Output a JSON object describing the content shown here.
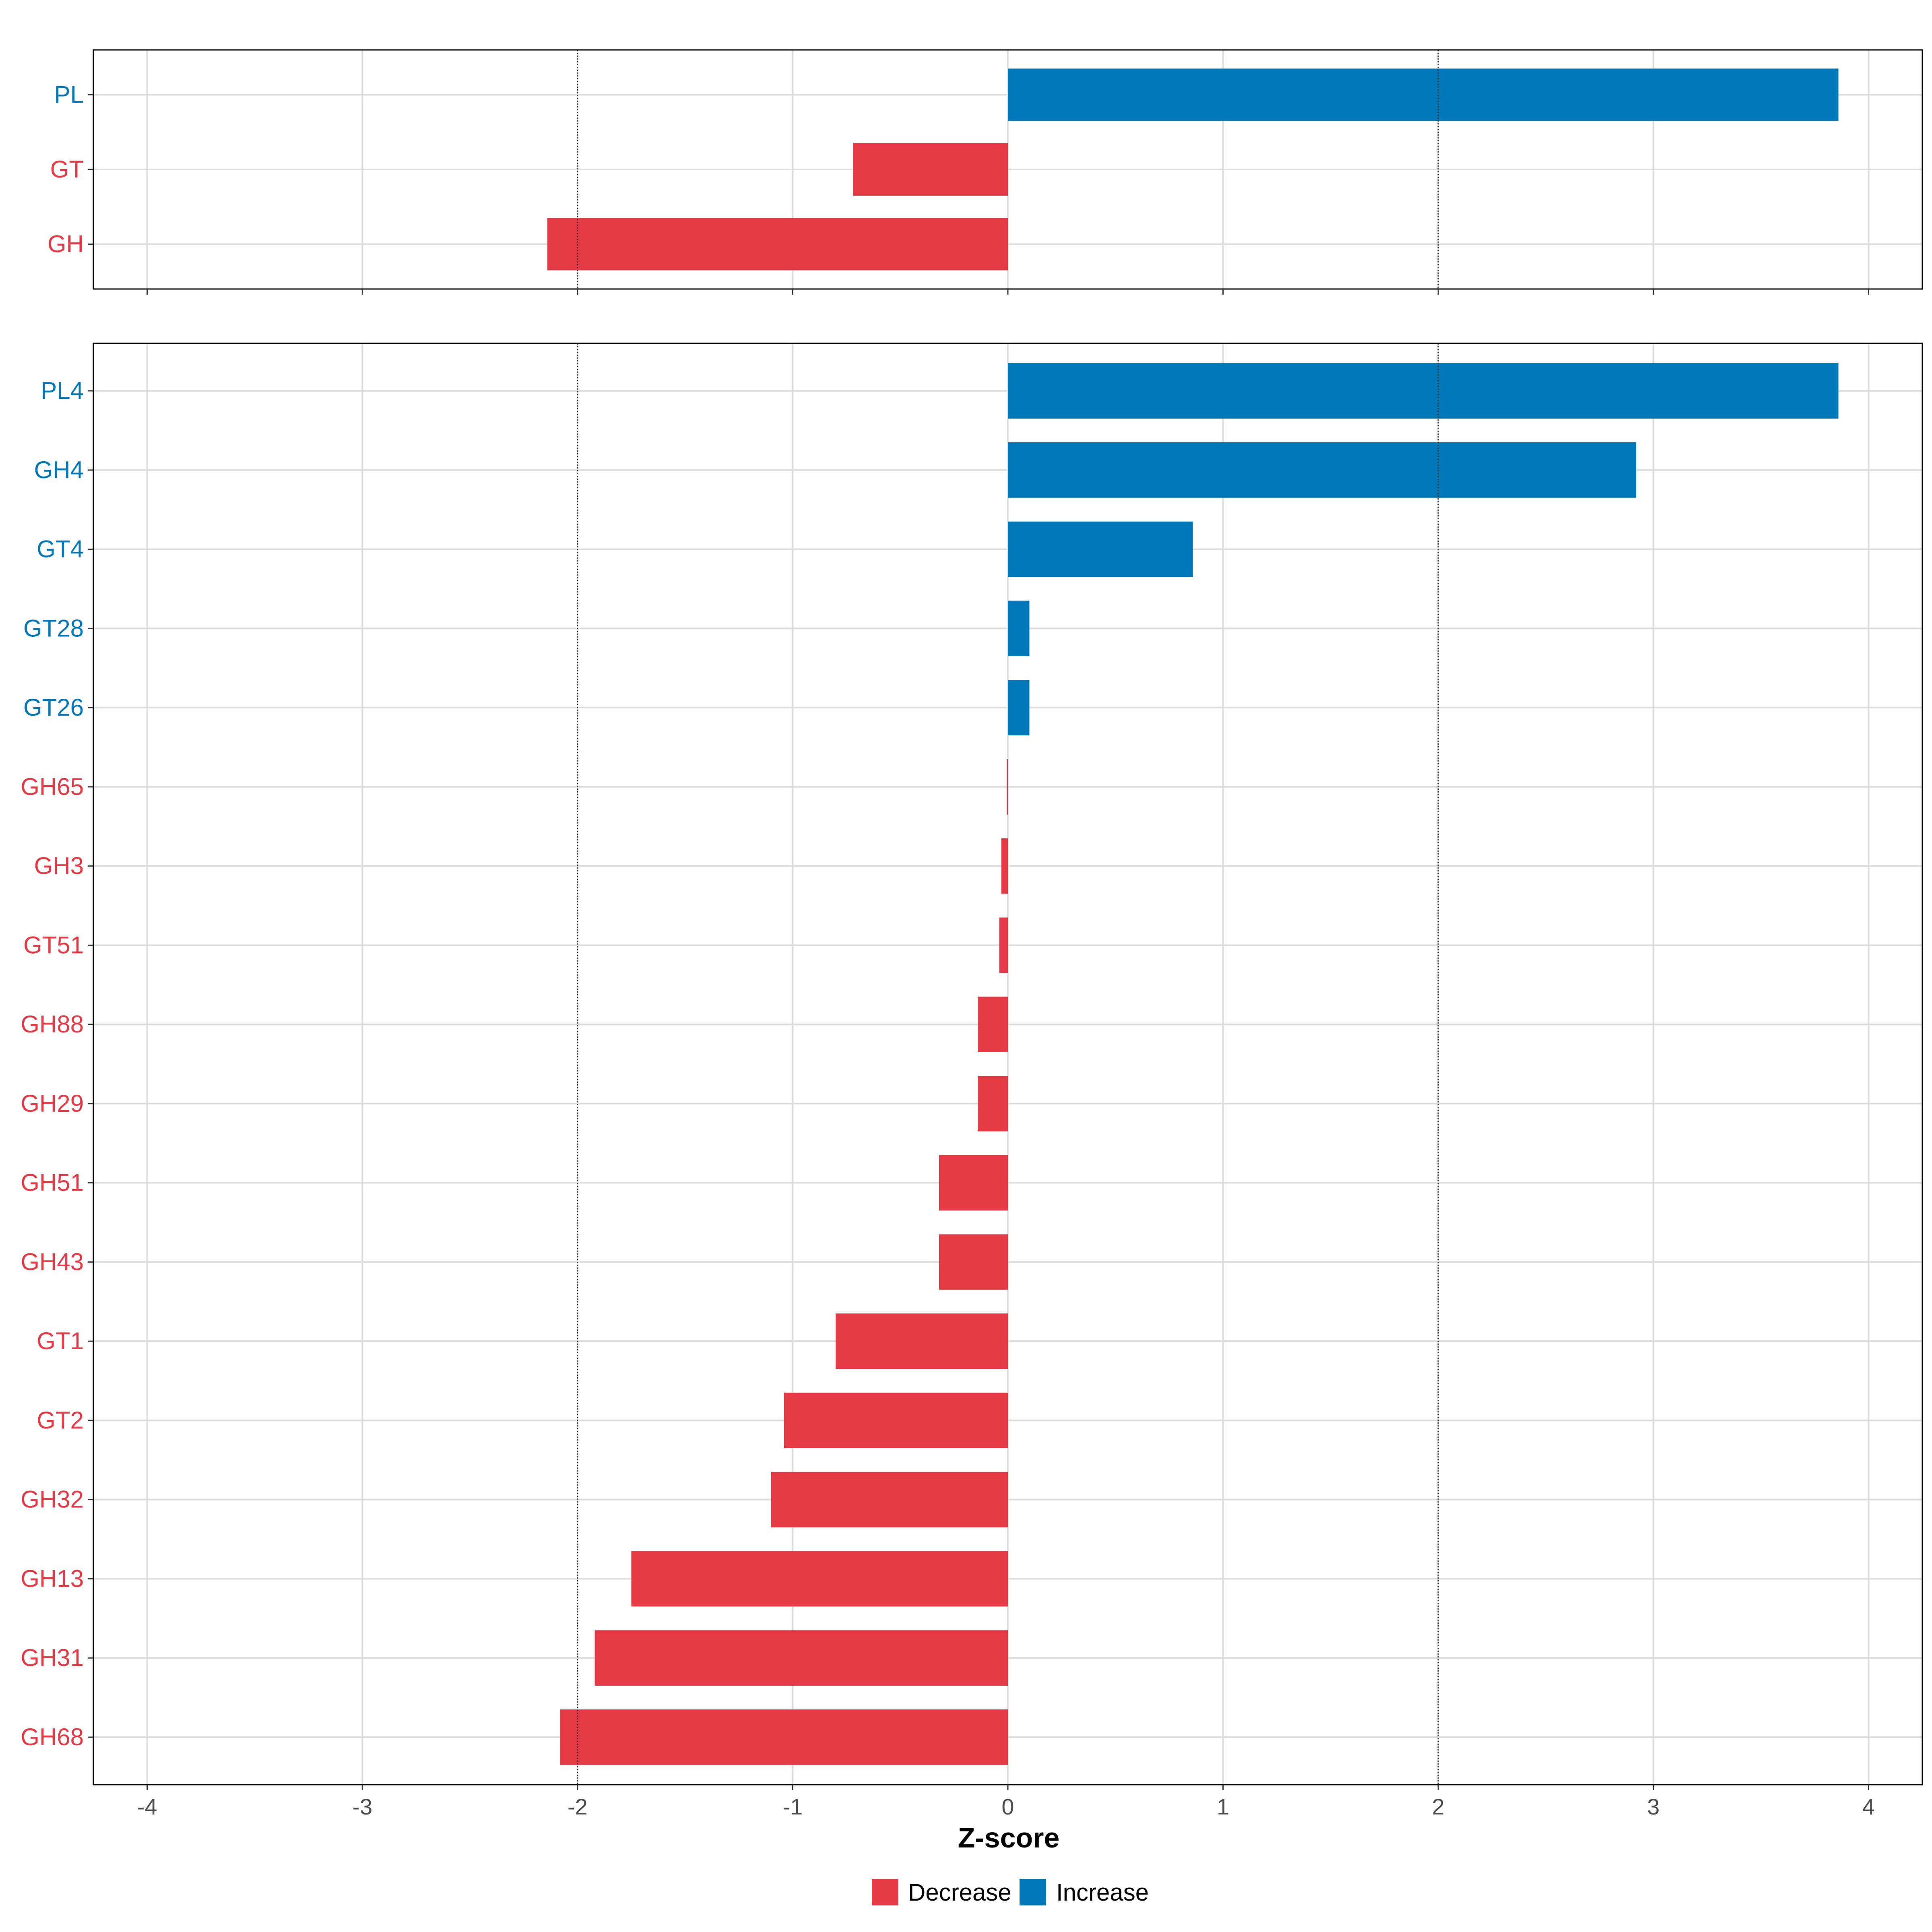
{
  "chart_data": {
    "type": "bar",
    "orientation": "horizontal",
    "xlabel": "Z-score",
    "xlim": [
      -4.25,
      4.25
    ],
    "xticks": [
      -4,
      -3,
      -2,
      -1,
      0,
      1,
      2,
      3,
      4
    ],
    "reference_lines": [
      -2,
      2
    ],
    "colors": {
      "Decrease": "#E63946",
      "Increase": "#0077B6"
    },
    "legend": [
      {
        "name": "Decrease",
        "color": "#E63946"
      },
      {
        "name": "Increase",
        "color": "#0077B6"
      }
    ],
    "panels": [
      {
        "name": "top",
        "bars": [
          {
            "label": "PL",
            "value": 3.86,
            "direction": "Increase"
          },
          {
            "label": "GT",
            "value": -0.72,
            "direction": "Decrease"
          },
          {
            "label": "GH",
            "value": -2.14,
            "direction": "Decrease"
          }
        ]
      },
      {
        "name": "bottom",
        "bars": [
          {
            "label": "PL4",
            "value": 3.86,
            "direction": "Increase"
          },
          {
            "label": "GH4",
            "value": 2.92,
            "direction": "Increase"
          },
          {
            "label": "GT4",
            "value": 0.86,
            "direction": "Increase"
          },
          {
            "label": "GT28",
            "value": 0.1,
            "direction": "Increase"
          },
          {
            "label": "GT26",
            "value": 0.1,
            "direction": "Increase"
          },
          {
            "label": "GH65",
            "value": -0.005,
            "direction": "Decrease"
          },
          {
            "label": "GH3",
            "value": -0.03,
            "direction": "Decrease"
          },
          {
            "label": "GT51",
            "value": -0.04,
            "direction": "Decrease"
          },
          {
            "label": "GH88",
            "value": -0.14,
            "direction": "Decrease"
          },
          {
            "label": "GH29",
            "value": -0.14,
            "direction": "Decrease"
          },
          {
            "label": "GH51",
            "value": -0.32,
            "direction": "Decrease"
          },
          {
            "label": "GH43",
            "value": -0.32,
            "direction": "Decrease"
          },
          {
            "label": "GT1",
            "value": -0.8,
            "direction": "Decrease"
          },
          {
            "label": "GT2",
            "value": -1.04,
            "direction": "Decrease"
          },
          {
            "label": "GH32",
            "value": -1.1,
            "direction": "Decrease"
          },
          {
            "label": "GH13",
            "value": -1.75,
            "direction": "Decrease"
          },
          {
            "label": "GH31",
            "value": -1.92,
            "direction": "Decrease"
          },
          {
            "label": "GH68",
            "value": -2.08,
            "direction": "Decrease"
          }
        ]
      }
    ]
  }
}
